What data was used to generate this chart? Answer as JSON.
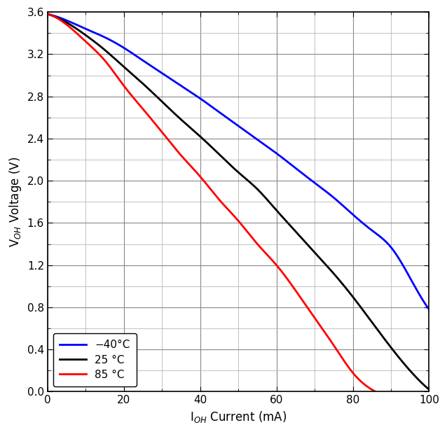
{
  "xlabel": "IₒH Current (mA)",
  "ylabel": "VₒH Voltage (V)",
  "xlim": [
    0,
    100
  ],
  "ylim": [
    0,
    3.6
  ],
  "x_major": 20,
  "x_minor": 10,
  "y_major": 0.4,
  "y_minor": 0.2,
  "curves": [
    {
      "label": "−40°C",
      "color": "#0000ff",
      "x": [
        0,
        5,
        10,
        15,
        20,
        25,
        30,
        35,
        40,
        45,
        50,
        55,
        60,
        65,
        70,
        75,
        80,
        85,
        90,
        95,
        100
      ],
      "y": [
        3.58,
        3.52,
        3.44,
        3.36,
        3.26,
        3.14,
        3.02,
        2.9,
        2.78,
        2.65,
        2.52,
        2.39,
        2.26,
        2.12,
        1.98,
        1.84,
        1.68,
        1.53,
        1.37,
        1.08,
        0.78
      ]
    },
    {
      "label": "25 °C",
      "color": "#000000",
      "x": [
        0,
        5,
        10,
        15,
        20,
        25,
        30,
        35,
        40,
        45,
        50,
        55,
        60,
        65,
        70,
        75,
        80,
        85,
        90,
        95,
        100
      ],
      "y": [
        3.58,
        3.5,
        3.38,
        3.24,
        3.08,
        2.92,
        2.75,
        2.58,
        2.42,
        2.25,
        2.08,
        1.92,
        1.72,
        1.52,
        1.32,
        1.12,
        0.9,
        0.66,
        0.42,
        0.2,
        0.02
      ]
    },
    {
      "label": "85 °C",
      "color": "#ff0000",
      "x": [
        0,
        5,
        10,
        15,
        20,
        25,
        30,
        35,
        40,
        45,
        50,
        55,
        60,
        65,
        70,
        75,
        80,
        85,
        86
      ],
      "y": [
        3.58,
        3.48,
        3.32,
        3.14,
        2.9,
        2.68,
        2.46,
        2.24,
        2.04,
        1.82,
        1.62,
        1.4,
        1.2,
        0.96,
        0.7,
        0.44,
        0.18,
        0.02,
        0.0
      ]
    }
  ],
  "background_color": "#ffffff",
  "grid_major_color": "#888888",
  "grid_minor_color": "#aaaaaa",
  "line_width": 2.0,
  "legend_loc": "lower left",
  "legend_fontsize": 11,
  "axis_fontsize": 12,
  "tick_fontsize": 11
}
